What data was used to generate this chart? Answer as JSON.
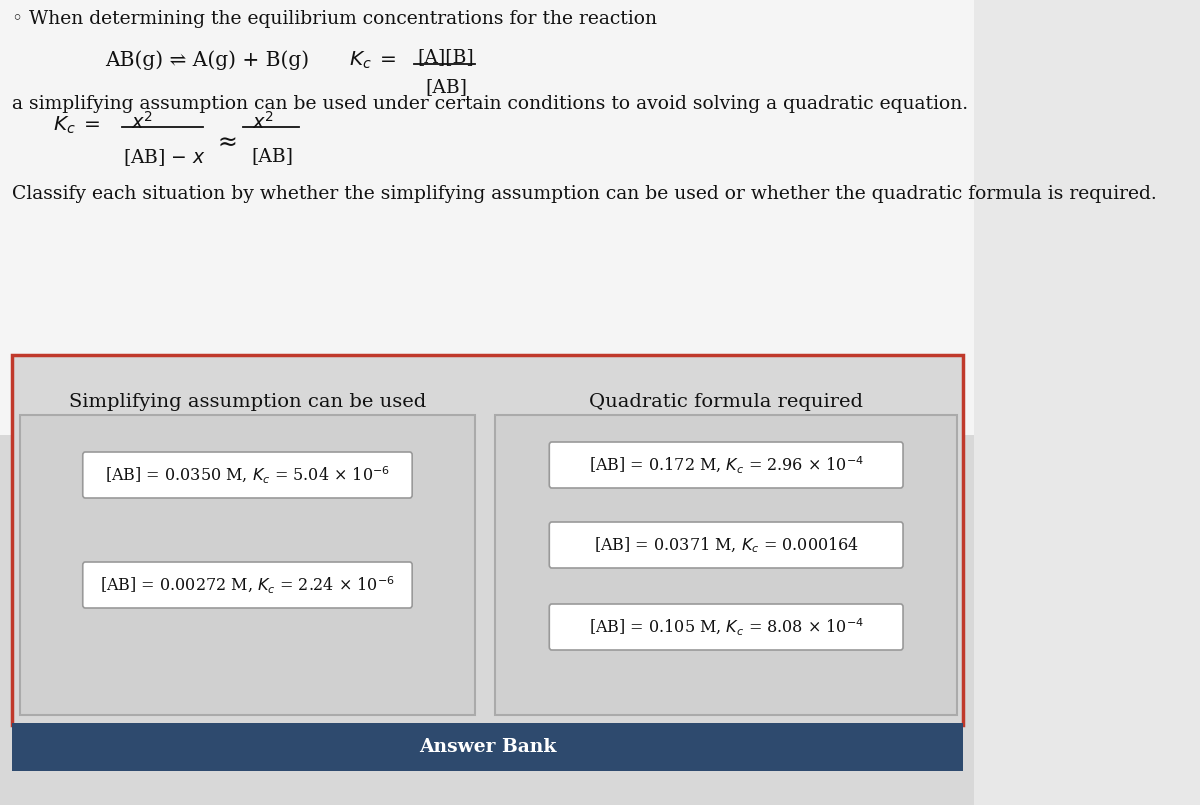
{
  "page_bg": "#e8e8e8",
  "top_bg": "#f5f5f5",
  "panel_bg": "#d8d8d8",
  "left_inner_bg": "#d4d4d4",
  "right_inner_bg": "#d4d4d4",
  "answer_bank_bg": "#2e4a6e",
  "card_bg": "#ffffff",
  "card_border": "#999999",
  "panel_outer_border": "#c0392b",
  "text_color": "#111111",
  "answer_bank_text": "#ffffff",
  "divider_color": "#bbbbbb",
  "intro_line": "When determining the equilibrium concentrations for the reaction",
  "reaction": "AB(g) ⇌ A(g) + B(g)",
  "line2": "a simplifying assumption can be used under certain conditions to avoid solving a quadratic equation.",
  "classify_text": "Classify each situation by whether the simplifying assumption can be used or whether the quadratic formula is required.",
  "left_title": "Simplifying assumption can be used",
  "right_title": "Quadratic formula required",
  "left_cards": [
    "[AB] = 0.0350 M, $K_c$ = 5.04 × 10$^{-6}$",
    "[AB] = 0.00272 M, $K_c$ = 2.24 × 10$^{-6}$"
  ],
  "right_cards": [
    "[AB] = 0.172 M, $K_c$ = 2.96 × 10$^{-4}$",
    "[AB] = 0.0371 M, $K_c$ = 0.000164",
    "[AB] = 0.105 M, $K_c$ = 8.08 × 10$^{-4}$"
  ],
  "answer_bank_label": "Answer Bank",
  "fig_width": 12.0,
  "fig_height": 8.05,
  "dpi": 100
}
